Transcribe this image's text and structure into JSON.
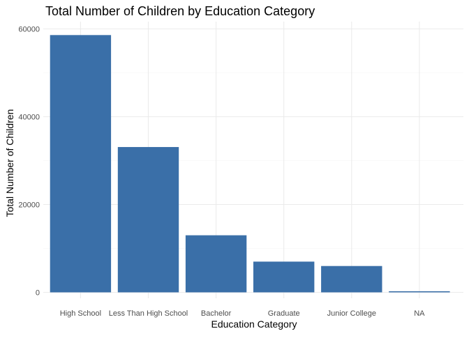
{
  "chart_data": {
    "type": "bar",
    "title": "Total Number of Children by Education Category",
    "xlabel": "Education Category",
    "ylabel": "Total Number of Children",
    "categories": [
      "High School",
      "Less Than High School",
      "Bachelor",
      "Graduate",
      "Junior College",
      "NA"
    ],
    "values": [
      58600,
      33100,
      13000,
      7000,
      6000,
      250
    ],
    "y_ticks": [
      0,
      20000,
      40000,
      60000
    ],
    "y_tick_labels": [
      "0",
      "20000",
      "40000",
      "60000"
    ],
    "ylim": [
      0,
      62000
    ],
    "grid": true,
    "bar_color": "#3A6FA8"
  }
}
